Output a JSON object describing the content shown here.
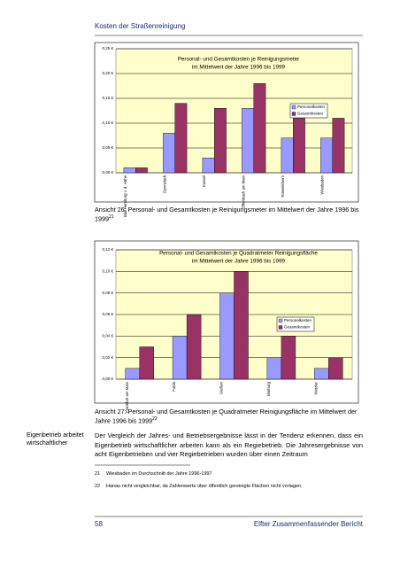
{
  "header": {
    "title": "Kosten der Straßenreinigung"
  },
  "chart_data": [
    {
      "type": "bar",
      "title": [
        "Personal- und Gesamtkosten je Reinigungsmeter",
        "im Mittelwert der Jahre 1996 bis 1999"
      ],
      "categories": [
        "Bad Homburg v. d. Höhe",
        "Darmstadt",
        "Kassel",
        "Offenbach am Main",
        "Rüsselsheim",
        "Wiesbaden"
      ],
      "series": [
        {
          "name": "Personalkosten",
          "color": "#9999ff",
          "values": [
            0.01,
            0.08,
            0.03,
            0.13,
            0.07,
            0.07
          ]
        },
        {
          "name": "Gesamtkosten",
          "color": "#993366",
          "values": [
            0.01,
            0.14,
            0.13,
            0.18,
            0.11,
            0.11
          ]
        }
      ],
      "ylim": [
        0,
        0.25
      ],
      "yticks": [
        {
          "value": 0,
          "label": "0,00 €"
        },
        {
          "value": 0.05,
          "label": "0,05 €"
        },
        {
          "value": 0.1,
          "label": "0,10 €"
        },
        {
          "value": 0.15,
          "label": "0,15 €"
        },
        {
          "value": 0.2,
          "label": "0,20 €"
        },
        {
          "value": 0.25,
          "label": "0,25 €"
        }
      ],
      "grid": true,
      "legend": "right"
    },
    {
      "type": "bar",
      "title": [
        "Personal- und Gesamtkosten je Quadratmeter Reinigungsfläche",
        "im Mittelwert der Jahre 1996 bis 1999"
      ],
      "categories": [
        "Frankfurt am Main",
        "Fulda",
        "Gießen",
        "Marburg",
        "Wetzlar"
      ],
      "series": [
        {
          "name": "Personalkosten",
          "color": "#9999ff",
          "values": [
            0.01,
            0.04,
            0.08,
            0.02,
            0.01
          ]
        },
        {
          "name": "Gesamtkosten",
          "color": "#993366",
          "values": [
            0.03,
            0.06,
            0.1,
            0.04,
            0.02
          ]
        }
      ],
      "ylim": [
        0,
        0.12
      ],
      "yticks": [
        {
          "value": 0,
          "label": "0,00 €"
        },
        {
          "value": 0.02,
          "label": "0,02 €"
        },
        {
          "value": 0.04,
          "label": "0,04 €"
        },
        {
          "value": 0.06,
          "label": "0,06 €"
        },
        {
          "value": 0.08,
          "label": "0,08 €"
        },
        {
          "value": 0.1,
          "label": "0,10 €"
        },
        {
          "value": 0.12,
          "label": "0,12 €"
        }
      ],
      "grid": true,
      "legend": "right"
    }
  ],
  "captions": [
    {
      "text": "Ansicht 26: Personal- und Gesamtkosten je Reinigungsmeter im Mittelwert der Jahre 1996 bis 1999",
      "ref": "21"
    },
    {
      "text": "Ansicht 27: Personal- und Gesamtkosten je Quadratmeter Reinigungsfläche im Mittelwert der Jahre 1996 bis 1999",
      "ref": "22"
    }
  ],
  "margin_note": "Eigenbetrieb arbeitet wirtschaftlicher",
  "body": "Der Vergleich der Jahres- und Betriebsergebnisse lässt in der Tendenz erkennen, dass ein Eigenbetrieb wirtschaftlicher arbeiten kann als ein Regiebetrieb. Die Jahresergebnisse von acht Eigenbetrieben und vier Regiebetrieben wurden über einen Zeitraum",
  "footnotes": [
    {
      "number": "21",
      "text": "Wiesbaden im Durchschnitt der Jahre 1996-1997"
    },
    {
      "number": "22",
      "text": "Hanau nicht vergleichbar, da Zahlenwerte über öffentlich gereinigte Flächen nicht vorlagen."
    }
  ],
  "footer": {
    "page": "58",
    "title": "Elfter Zusammenfassender Bericht"
  }
}
